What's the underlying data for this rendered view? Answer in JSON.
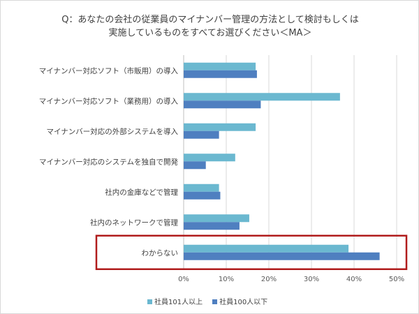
{
  "chart_data": {
    "type": "bar",
    "orientation": "horizontal",
    "title": [
      "Q：あなたの会社の従業員のマイナンバー管理の方法として検討もしくは",
      "実施しているものをすべてお選びください＜MA＞"
    ],
    "categories": [
      "マイナンバー対応ソフト（市販用）の導入",
      "マイナンバー対応ソフト（業務用）の導入",
      "マイナンバー対応の外部システムを導入",
      "マイナンバー対応のシステムを独自で開発",
      "社内の金庫などで管理",
      "社内のネットワークで管理",
      "わからない"
    ],
    "series": [
      {
        "name": "社員101人以上",
        "color": "#6bb8d0",
        "values": [
          16.9,
          36.7,
          16.9,
          12.1,
          8.3,
          15.4,
          38.7
        ]
      },
      {
        "name": "社員100人以下",
        "color": "#4f7fc0",
        "values": [
          17.2,
          18.1,
          8.3,
          5.2,
          8.6,
          13.1,
          46.0
        ]
      }
    ],
    "xlim": [
      0,
      50
    ],
    "xticks": [
      "0%",
      "10%",
      "20%",
      "30%",
      "40%",
      "50%"
    ],
    "grid": true,
    "legend": "bottom",
    "highlight": {
      "category": "わからない",
      "color": "#b01c1c"
    }
  }
}
